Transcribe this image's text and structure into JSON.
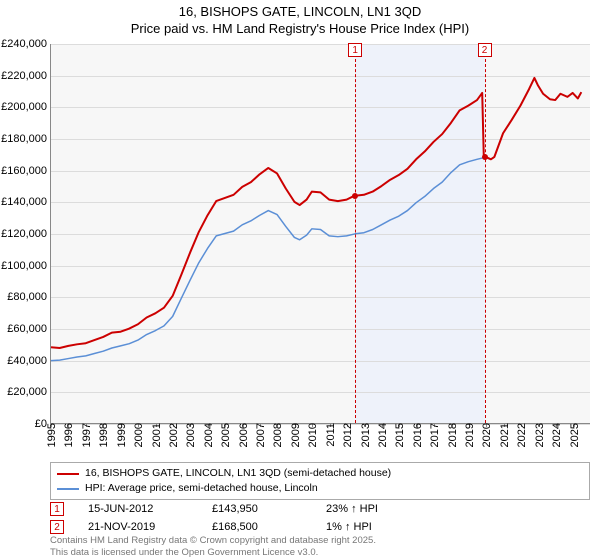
{
  "title": {
    "line1": "16, BISHOPS GATE, LINCOLN, LN1 3QD",
    "line2": "Price paid vs. HM Land Registry's House Price Index (HPI)"
  },
  "chart": {
    "type": "line",
    "background_color": "#f7f7f7",
    "grid_color": "#dcdcdc",
    "axis_color": "#888888",
    "y": {
      "min": 0,
      "max": 240000,
      "step": 20000,
      "labels": [
        "£0",
        "£20,000",
        "£40,000",
        "£60,000",
        "£80,000",
        "£100,000",
        "£120,000",
        "£140,000",
        "£160,000",
        "£180,000",
        "£200,000",
        "£220,000",
        "£240,000"
      ],
      "label_fontsize": 11
    },
    "x": {
      "min": 1995,
      "max": 2026,
      "labels": [
        "1995",
        "1996",
        "1997",
        "1998",
        "1999",
        "2000",
        "2001",
        "2002",
        "2003",
        "2004",
        "2005",
        "2006",
        "2007",
        "2008",
        "2009",
        "2010",
        "2011",
        "2012",
        "2013",
        "2014",
        "2015",
        "2016",
        "2017",
        "2018",
        "2019",
        "2020",
        "2021",
        "2022",
        "2023",
        "2024",
        "2025"
      ],
      "label_fontsize": 11
    },
    "shaded_band": {
      "x_start": 2012.46,
      "x_end": 2019.89,
      "fill": "#eef2fa"
    },
    "series": [
      {
        "name": "price-paid",
        "label": "16, BISHOPS GATE, LINCOLN, LN1 3QD (semi-detached house)",
        "color": "#cc0000",
        "line_width": 2,
        "points": [
          [
            1995.0,
            48000
          ],
          [
            1995.5,
            47500
          ],
          [
            1996.0,
            48800
          ],
          [
            1996.5,
            49800
          ],
          [
            1997.0,
            50500
          ],
          [
            1997.5,
            52500
          ],
          [
            1998.0,
            54500
          ],
          [
            1998.5,
            57200
          ],
          [
            1999.0,
            57800
          ],
          [
            1999.5,
            59800
          ],
          [
            2000.0,
            62500
          ],
          [
            2000.5,
            66800
          ],
          [
            2001.0,
            69500
          ],
          [
            2001.5,
            73000
          ],
          [
            2002.0,
            80500
          ],
          [
            2002.5,
            94000
          ],
          [
            2003.0,
            108000
          ],
          [
            2003.5,
            121000
          ],
          [
            2004.0,
            131500
          ],
          [
            2004.5,
            140500
          ],
          [
            2005.0,
            142500
          ],
          [
            2005.5,
            144500
          ],
          [
            2006.0,
            149500
          ],
          [
            2006.5,
            152500
          ],
          [
            2007.0,
            157500
          ],
          [
            2007.5,
            161500
          ],
          [
            2008.0,
            158000
          ],
          [
            2008.5,
            148500
          ],
          [
            2009.0,
            140000
          ],
          [
            2009.3,
            138000
          ],
          [
            2009.7,
            141500
          ],
          [
            2010.0,
            146500
          ],
          [
            2010.5,
            146000
          ],
          [
            2011.0,
            141500
          ],
          [
            2011.5,
            140500
          ],
          [
            2012.0,
            141500
          ],
          [
            2012.46,
            143950
          ],
          [
            2012.5,
            143950
          ],
          [
            2013.0,
            144500
          ],
          [
            2013.5,
            146500
          ],
          [
            2014.0,
            150000
          ],
          [
            2014.5,
            154000
          ],
          [
            2015.0,
            157000
          ],
          [
            2015.5,
            161000
          ],
          [
            2016.0,
            167000
          ],
          [
            2016.5,
            172000
          ],
          [
            2017.0,
            178000
          ],
          [
            2017.5,
            183000
          ],
          [
            2018.0,
            190000
          ],
          [
            2018.5,
            198000
          ],
          [
            2019.0,
            201000
          ],
          [
            2019.5,
            204500
          ],
          [
            2019.8,
            209000
          ],
          [
            2019.89,
            168500
          ],
          [
            2020.0,
            168500
          ],
          [
            2020.3,
            167000
          ],
          [
            2020.5,
            168500
          ],
          [
            2021.0,
            183500
          ],
          [
            2021.5,
            192000
          ],
          [
            2022.0,
            201000
          ],
          [
            2022.5,
            211500
          ],
          [
            2022.8,
            218500
          ],
          [
            2023.0,
            214000
          ],
          [
            2023.3,
            208500
          ],
          [
            2023.7,
            205000
          ],
          [
            2024.0,
            204500
          ],
          [
            2024.3,
            208500
          ],
          [
            2024.7,
            206500
          ],
          [
            2025.0,
            209000
          ],
          [
            2025.3,
            205500
          ],
          [
            2025.5,
            209500
          ]
        ]
      },
      {
        "name": "hpi",
        "label": "HPI: Average price, semi-detached house, Lincoln",
        "color": "#5b8fd6",
        "line_width": 1.5,
        "points": [
          [
            1995.0,
            39500
          ],
          [
            1995.5,
            39800
          ],
          [
            1996.0,
            40800
          ],
          [
            1996.5,
            41800
          ],
          [
            1997.0,
            42500
          ],
          [
            1997.5,
            44000
          ],
          [
            1998.0,
            45500
          ],
          [
            1998.5,
            47500
          ],
          [
            1999.0,
            48800
          ],
          [
            1999.5,
            50200
          ],
          [
            2000.0,
            52500
          ],
          [
            2000.5,
            56000
          ],
          [
            2001.0,
            58500
          ],
          [
            2001.5,
            61500
          ],
          [
            2002.0,
            67500
          ],
          [
            2002.5,
            79000
          ],
          [
            2003.0,
            90500
          ],
          [
            2003.5,
            101500
          ],
          [
            2004.0,
            110500
          ],
          [
            2004.5,
            118500
          ],
          [
            2005.0,
            120000
          ],
          [
            2005.5,
            121500
          ],
          [
            2006.0,
            125500
          ],
          [
            2006.5,
            128000
          ],
          [
            2007.0,
            131500
          ],
          [
            2007.5,
            134500
          ],
          [
            2008.0,
            132000
          ],
          [
            2008.5,
            124500
          ],
          [
            2009.0,
            117500
          ],
          [
            2009.3,
            116000
          ],
          [
            2009.7,
            119000
          ],
          [
            2010.0,
            123000
          ],
          [
            2010.5,
            122500
          ],
          [
            2011.0,
            118500
          ],
          [
            2011.5,
            118000
          ],
          [
            2012.0,
            118500
          ],
          [
            2012.5,
            119800
          ],
          [
            2013.0,
            120500
          ],
          [
            2013.5,
            122500
          ],
          [
            2014.0,
            125500
          ],
          [
            2014.5,
            128500
          ],
          [
            2015.0,
            131000
          ],
          [
            2015.5,
            134500
          ],
          [
            2016.0,
            139500
          ],
          [
            2016.5,
            143500
          ],
          [
            2017.0,
            148500
          ],
          [
            2017.5,
            152500
          ],
          [
            2018.0,
            158500
          ],
          [
            2018.5,
            163500
          ],
          [
            2019.0,
            165500
          ],
          [
            2019.5,
            167000
          ],
          [
            2019.89,
            168000
          ],
          [
            2020.0,
            168000
          ],
          [
            2020.3,
            167000
          ],
          [
            2020.5,
            168500
          ],
          [
            2021.0,
            183500
          ],
          [
            2021.5,
            192000
          ],
          [
            2022.0,
            201000
          ],
          [
            2022.5,
            211500
          ],
          [
            2022.8,
            218500
          ],
          [
            2023.0,
            214000
          ],
          [
            2023.3,
            208500
          ],
          [
            2023.7,
            205000
          ],
          [
            2024.0,
            204500
          ],
          [
            2024.3,
            208500
          ],
          [
            2024.7,
            206500
          ],
          [
            2025.0,
            209000
          ],
          [
            2025.3,
            205500
          ],
          [
            2025.5,
            209500
          ]
        ]
      }
    ],
    "markers": [
      {
        "id": "1",
        "x": 2012.46,
        "y": 143950,
        "line_color": "#cc0000",
        "dash": true
      },
      {
        "id": "2",
        "x": 2019.89,
        "y": 168500,
        "line_color": "#cc0000",
        "dash": true
      }
    ]
  },
  "legend": {
    "items": [
      {
        "color": "#cc0000",
        "text": "16, BISHOPS GATE, LINCOLN, LN1 3QD (semi-detached house)"
      },
      {
        "color": "#5b8fd6",
        "text": "HPI: Average price, semi-detached house, Lincoln"
      }
    ]
  },
  "footer_rows": [
    {
      "marker": "1",
      "date": "15-JUN-2012",
      "price": "£143,950",
      "hpi": "23% ↑ HPI"
    },
    {
      "marker": "2",
      "date": "21-NOV-2019",
      "price": "£168,500",
      "hpi": "1% ↑ HPI"
    }
  ],
  "attribution": {
    "line1": "Contains HM Land Registry data © Crown copyright and database right 2025.",
    "line2": "This data is licensed under the Open Government Licence v3.0."
  }
}
